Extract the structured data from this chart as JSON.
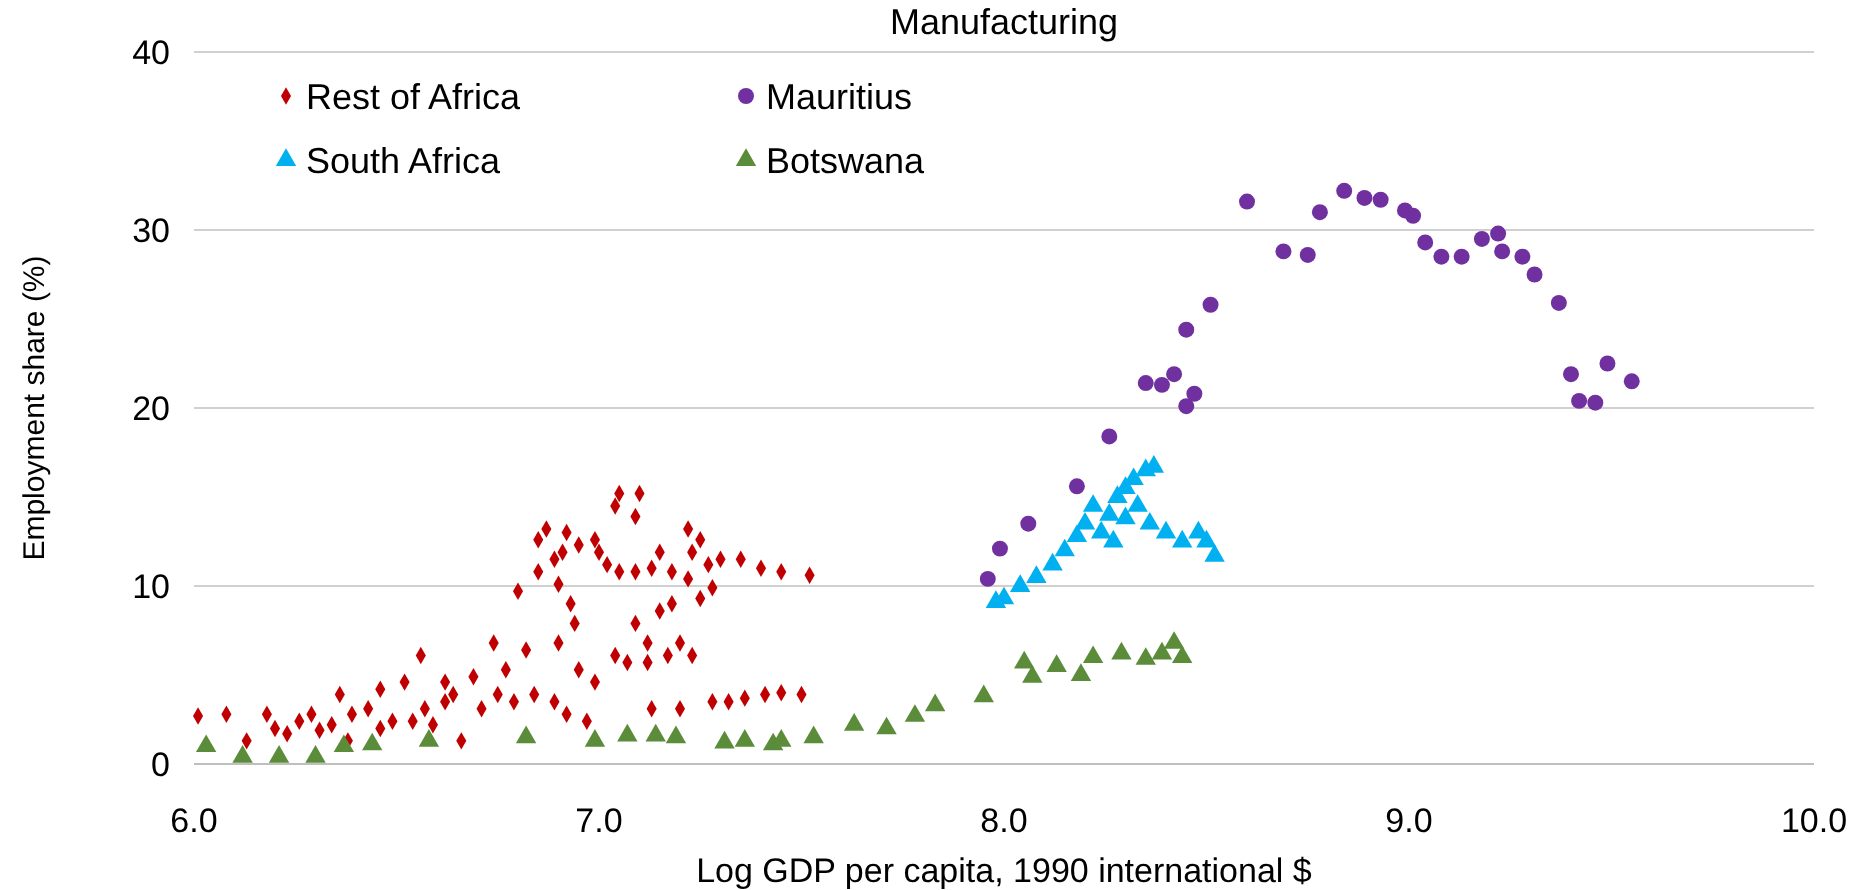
{
  "chart_data": {
    "type": "scatter",
    "title": "Manufacturing",
    "xlabel": "Log GDP per capita, 1990 international $",
    "ylabel": "Employment share (%)",
    "xlim": [
      6,
      10
    ],
    "xticks": [
      {
        "value": 6,
        "label": "6.0"
      },
      {
        "value": 7,
        "label": "7.0"
      },
      {
        "value": 8,
        "label": "8.0"
      },
      {
        "value": 9,
        "label": "9.0"
      },
      {
        "value": 10,
        "label": "10.0"
      }
    ],
    "ylim": [
      0,
      40
    ],
    "yticks": [
      0,
      10,
      20,
      30,
      40
    ],
    "grid": "y",
    "legend": "top left",
    "series": [
      {
        "name": "Rest of Africa",
        "color": "#c00000",
        "marker": "diamond",
        "x": [
          6.01,
          6.08,
          6.13,
          6.18,
          6.2,
          6.23,
          6.26,
          6.29,
          6.31,
          6.34,
          6.36,
          6.38,
          6.39,
          6.43,
          6.46,
          6.46,
          6.49,
          6.52,
          6.54,
          6.56,
          6.57,
          6.59,
          6.62,
          6.62,
          6.64,
          6.66,
          6.69,
          6.71,
          6.74,
          6.75,
          6.77,
          6.79,
          6.8,
          6.82,
          6.84,
          6.85,
          6.85,
          6.87,
          6.89,
          6.89,
          6.9,
          6.9,
          6.91,
          6.92,
          6.92,
          6.93,
          6.94,
          6.95,
          6.95,
          6.97,
          6.99,
          6.99,
          7.0,
          7.02,
          7.04,
          7.04,
          7.05,
          7.05,
          7.07,
          7.09,
          7.09,
          7.09,
          7.1,
          7.12,
          7.12,
          7.13,
          7.13,
          7.15,
          7.15,
          7.17,
          7.18,
          7.18,
          7.2,
          7.2,
          7.22,
          7.22,
          7.23,
          7.23,
          7.25,
          7.25,
          7.27,
          7.28,
          7.28,
          7.3,
          7.32,
          7.35,
          7.36,
          7.4,
          7.41,
          7.45,
          7.45,
          7.5,
          7.52
        ],
        "values": [
          2.7,
          2.8,
          1.3,
          2.8,
          2.0,
          1.7,
          2.4,
          2.8,
          1.9,
          2.2,
          3.9,
          1.3,
          2.8,
          3.1,
          4.2,
          2.0,
          2.4,
          4.6,
          2.4,
          6.1,
          3.1,
          2.2,
          4.6,
          3.5,
          3.9,
          1.3,
          4.9,
          3.1,
          6.8,
          3.9,
          5.3,
          3.5,
          9.7,
          6.4,
          3.9,
          10.8,
          12.6,
          13.2,
          11.5,
          3.5,
          10.1,
          6.8,
          11.9,
          13.0,
          2.8,
          9.0,
          7.9,
          5.3,
          12.3,
          2.4,
          12.6,
          4.6,
          11.9,
          11.2,
          6.1,
          14.5,
          10.8,
          15.2,
          5.7,
          10.8,
          7.9,
          13.9,
          15.2,
          6.8,
          5.7,
          11.0,
          3.1,
          11.9,
          8.6,
          6.1,
          10.8,
          9.0,
          3.1,
          6.8,
          13.2,
          10.4,
          11.9,
          6.1,
          9.3,
          12.6,
          11.2,
          3.5,
          9.9,
          11.5,
          3.5,
          11.5,
          3.7,
          11.0,
          3.9,
          10.8,
          4.0,
          3.9,
          10.6
        ]
      },
      {
        "name": "Mauritius",
        "color": "#7030a0",
        "marker": "circle",
        "x": [
          7.96,
          7.99,
          8.06,
          8.18,
          8.26,
          8.35,
          8.39,
          8.42,
          8.47,
          8.45,
          8.45,
          8.51,
          8.6,
          8.69,
          8.75,
          8.78,
          8.84,
          8.89,
          8.93,
          8.99,
          9.01,
          9.04,
          9.08,
          9.13,
          9.18,
          9.22,
          9.23,
          9.28,
          9.31,
          9.37,
          9.4,
          9.42,
          9.46,
          9.49,
          9.55
        ],
        "values": [
          10.4,
          12.1,
          13.5,
          15.6,
          18.4,
          21.4,
          21.3,
          21.9,
          20.8,
          20.1,
          24.4,
          25.8,
          31.6,
          28.8,
          28.6,
          31.0,
          32.2,
          31.8,
          31.7,
          31.1,
          30.8,
          29.3,
          28.5,
          28.5,
          29.5,
          29.8,
          28.8,
          28.5,
          27.5,
          25.9,
          21.9,
          20.4,
          20.3,
          22.5,
          21.5
        ]
      },
      {
        "name": "South Africa",
        "color": "#00b0f0",
        "marker": "triangle",
        "x": [
          7.98,
          8.0,
          8.04,
          8.08,
          8.12,
          8.15,
          8.18,
          8.2,
          8.22,
          8.24,
          8.26,
          8.27,
          8.28,
          8.3,
          8.3,
          8.32,
          8.33,
          8.35,
          8.36,
          8.37,
          8.4,
          8.44,
          8.48,
          8.5,
          8.52
        ],
        "values": [
          9.1,
          9.3,
          10.0,
          10.5,
          11.2,
          12.0,
          12.8,
          13.5,
          14.5,
          13.0,
          14.0,
          12.5,
          15.0,
          15.5,
          13.8,
          16.0,
          14.5,
          16.5,
          13.5,
          16.7,
          13.0,
          12.5,
          13.0,
          12.5,
          11.7
        ]
      },
      {
        "name": "Botswana",
        "color": "#5b8c3a",
        "marker": "triangle",
        "x": [
          6.03,
          6.12,
          6.21,
          6.3,
          6.37,
          6.44,
          6.58,
          6.82,
          6.99,
          7.07,
          7.14,
          7.19,
          7.31,
          7.36,
          7.43,
          7.45,
          7.53,
          7.63,
          7.71,
          7.78,
          7.83,
          7.95,
          8.05,
          8.07,
          8.13,
          8.19,
          8.22,
          8.29,
          8.35,
          8.39,
          8.42,
          8.44
        ],
        "values": [
          1.0,
          0.4,
          0.4,
          0.4,
          1.0,
          1.1,
          1.3,
          1.5,
          1.3,
          1.6,
          1.6,
          1.5,
          1.2,
          1.3,
          1.1,
          1.3,
          1.5,
          2.2,
          2.0,
          2.7,
          3.3,
          3.8,
          5.7,
          4.9,
          5.5,
          5.0,
          6.0,
          6.2,
          5.9,
          6.2,
          6.8,
          6.0
        ]
      }
    ]
  }
}
